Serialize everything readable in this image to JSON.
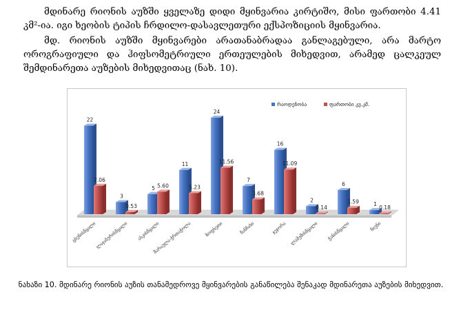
{
  "document": {
    "paragraph_1": "მდინარე რიონის აუზში ყველაზე დიდი მყინვარია კირტიშო, მისი ფართობი 4.41 კმ²-ია. იგი ხეობის ტიპის ჩრდილო-დასავლეთური ექსპოზიციის მყინვარია.",
    "paragraph_2": "მდ. რიონის აუზში მყინვარები არათანაბრადაა განლაგებული, არა მარტო ოროგრაფიული და ჰიფსომეტრიული ერთეულების მიხედვით, არამედ ცალკეულ შემდინარეთა აუზების მიხედვითაც (ნახ. 10).",
    "caption": "ნახაზი 10. მდინარე რიონის აუზის თანამედროვე მყინვარების განაწილება შენაკად მდინარეთა აუზების მიხედვით."
  },
  "chart_data": {
    "type": "bar",
    "categories": [
      "ცხენისწყალი",
      "ლაჯანურისწყალი",
      "ასკისწყალი",
      "შარაულა-ჭრთაჭოლა",
      "ზოფხეთი",
      "ჩანჩახი",
      "ჯეჯორა",
      "ლამუშისწყალი",
      "ჭანისწყალი",
      "ჩიუნი"
    ],
    "series": [
      {
        "name": "რაოდენობა",
        "color": "#4472c4",
        "values": [
          22,
          3,
          5,
          11,
          24,
          7,
          16,
          2,
          6,
          1
        ],
        "labels": [
          "22",
          "3",
          "5",
          "11",
          "24",
          "7",
          "16",
          "2",
          "6",
          "1"
        ]
      },
      {
        "name": "ფართობი კვ.კმ.",
        "color": "#c0504d",
        "values": [
          7.06,
          0.53,
          5.6,
          5.23,
          11.56,
          3.68,
          11.09,
          0.14,
          1.59,
          0.18
        ],
        "labels": [
          "7.06",
          "0.53",
          "5.60",
          "5.23",
          "11.56",
          "3.68",
          "11.09",
          "0.14",
          "1.59",
          "0.18"
        ]
      }
    ],
    "ylim": [
      0,
      25
    ],
    "grid": false,
    "legend_position": "top-right"
  }
}
